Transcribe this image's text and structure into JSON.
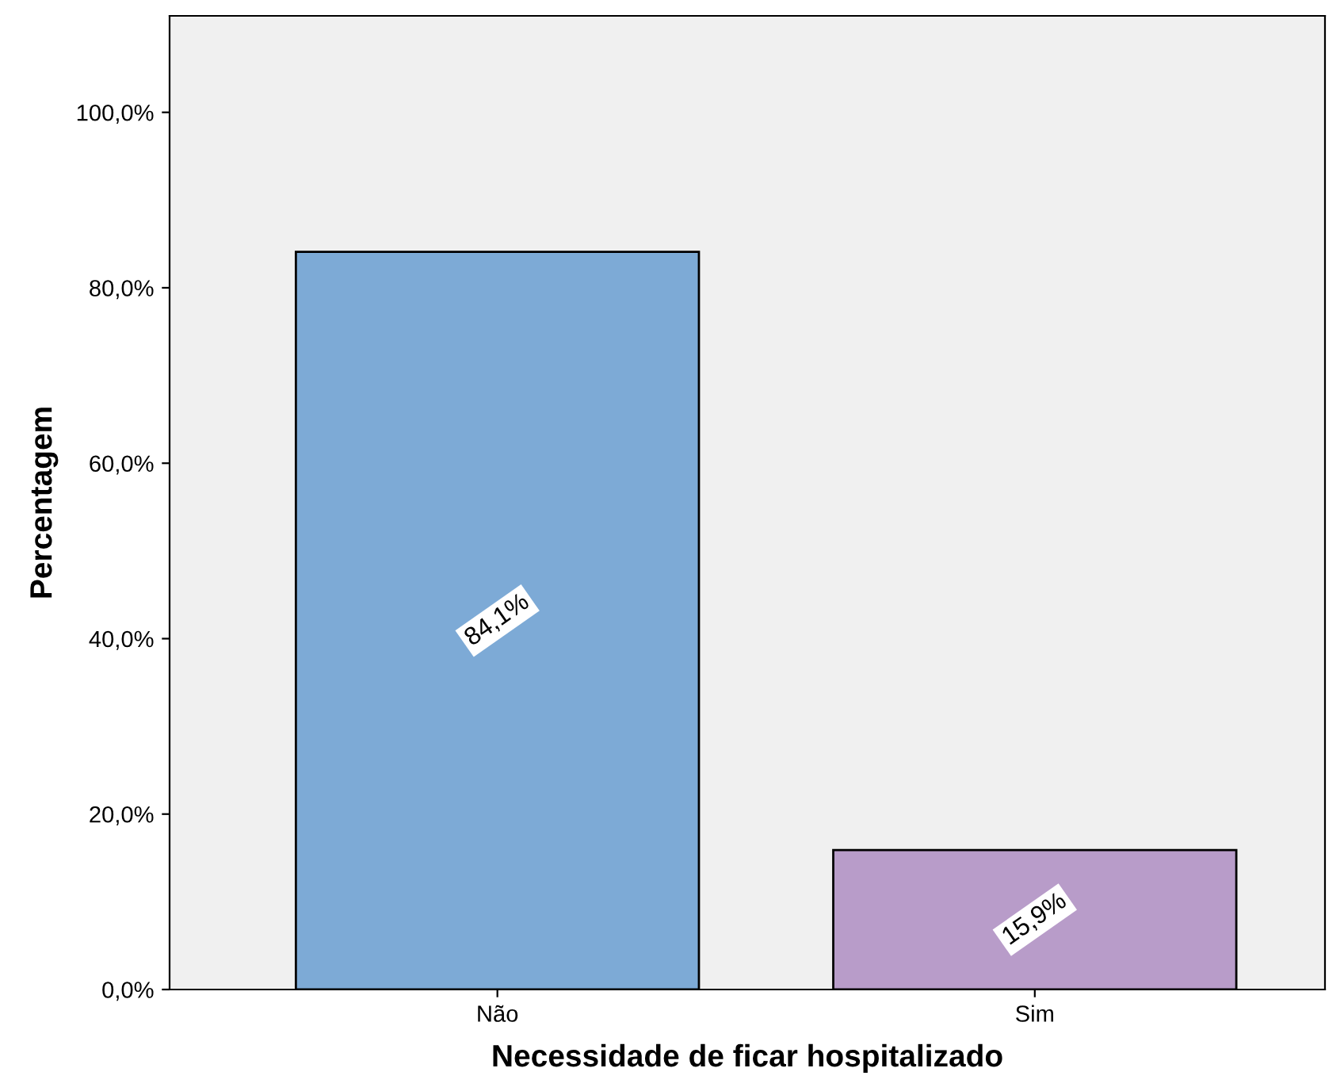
{
  "chart_data": {
    "type": "bar",
    "xlabel": "Necessidade de ficar hospitalizado",
    "ylabel": "Percentagem",
    "categories": [
      "Não",
      "Sim"
    ],
    "values": [
      84.1,
      15.9
    ],
    "colors": [
      "#7daad6",
      "#b89cc9"
    ],
    "value_labels": [
      "84,1%",
      "15,9%"
    ],
    "ylim": [
      0,
      111
    ],
    "yticks": [
      {
        "value": 0,
        "label": "0,0%"
      },
      {
        "value": 20,
        "label": "20,0%"
      },
      {
        "value": 40,
        "label": "40,0%"
      },
      {
        "value": 60,
        "label": "60,0%"
      },
      {
        "value": 80,
        "label": "80,0%"
      },
      {
        "value": 100,
        "label": "100,0%"
      }
    ],
    "grid": false,
    "legend": false
  }
}
